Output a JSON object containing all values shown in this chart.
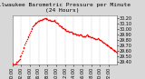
{
  "title": "Milwaukee Barometric Pressure per Minute",
  "title2": "(24 Hours)",
  "bg_color": "#d8d8d8",
  "plot_bg": "#ffffff",
  "line_color": "#ff0000",
  "grid_color": "#aaaaaa",
  "ylim": [
    29.35,
    30.25
  ],
  "yticks": [
    29.4,
    29.5,
    29.6,
    29.7,
    29.8,
    29.9,
    30.0,
    30.1,
    30.2
  ],
  "pressure_values": [
    29.38,
    29.37,
    29.36,
    29.35,
    29.37,
    29.38,
    29.4,
    29.41,
    29.43,
    29.44,
    29.46,
    29.5,
    29.53,
    29.57,
    29.61,
    29.65,
    29.68,
    29.72,
    29.75,
    29.79,
    29.82,
    29.85,
    29.88,
    29.91,
    29.94,
    29.97,
    30.0,
    30.03,
    30.05,
    30.07,
    30.09,
    30.11,
    30.12,
    30.13,
    30.14,
    30.15,
    30.16,
    30.16,
    30.17,
    30.18,
    30.18,
    30.19,
    30.19,
    30.19,
    30.2,
    30.2,
    30.2,
    30.19,
    30.19,
    30.18,
    30.18,
    30.17,
    30.17,
    30.16,
    30.15,
    30.15,
    30.16,
    30.17,
    30.15,
    30.14,
    30.13,
    30.12,
    30.11,
    30.1,
    30.08,
    30.07,
    30.06,
    30.05,
    30.04,
    30.03,
    30.02,
    30.01,
    30.0,
    29.99,
    29.98,
    29.97,
    29.97,
    29.96,
    29.95,
    29.95,
    29.96,
    29.95,
    29.94,
    29.93,
    29.93,
    29.92,
    29.92,
    29.91,
    29.91,
    29.9,
    29.9,
    29.89,
    29.9,
    29.91,
    29.9,
    29.89,
    29.88,
    29.88,
    29.87,
    29.87,
    29.88,
    29.89,
    29.9,
    29.89,
    29.88,
    29.87,
    29.87,
    29.86,
    29.86,
    29.85,
    29.85,
    29.84,
    29.84,
    29.83,
    29.82,
    29.82,
    29.83,
    29.84,
    29.83,
    29.82,
    29.81,
    29.8,
    29.79,
    29.78,
    29.77,
    29.76,
    29.75,
    29.74,
    29.73,
    29.72,
    29.71,
    29.7,
    29.69,
    29.68,
    29.67,
    29.66,
    29.65,
    29.64,
    29.63,
    29.62,
    29.61,
    29.6,
    29.59,
    29.58
  ],
  "xlabel_interval": 12,
  "title_fontsize": 4.5,
  "tick_fontsize": 3.5,
  "marker_size": 1.2
}
